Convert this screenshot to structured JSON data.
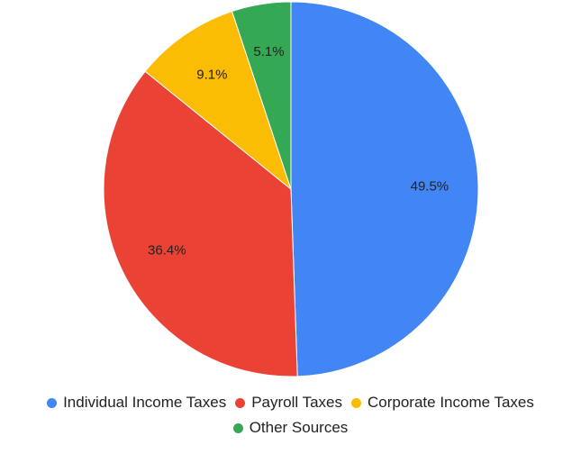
{
  "chart_data": {
    "type": "pie",
    "categories": [
      "Individual Income Taxes",
      "Payroll Taxes",
      "Corporate Income Taxes",
      "Other Sources"
    ],
    "values": [
      49.5,
      36.4,
      9.1,
      5.1
    ],
    "value_labels": [
      "49.5%",
      "36.4%",
      "9.1%",
      "5.1%"
    ],
    "colors": [
      "#4285f4",
      "#ea4335",
      "#fbbc04",
      "#34a853"
    ]
  }
}
